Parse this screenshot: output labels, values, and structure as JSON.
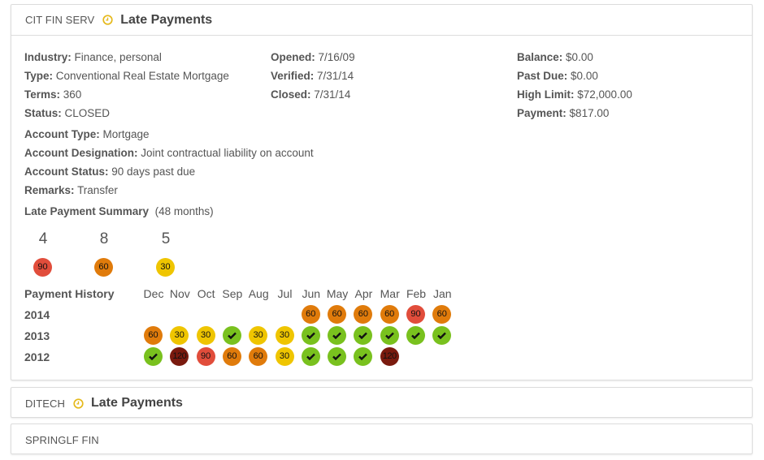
{
  "colors": {
    "c30": "#efc500",
    "c60": "#e07b0b",
    "c90": "#e14d3b",
    "c120": "#7a1a0e",
    "ok": "#79c11e",
    "clock": "#e5b91c"
  },
  "accounts": [
    {
      "creditor": "CIT FIN SERV",
      "status_title": "Late Payments",
      "has_clock": true,
      "details": {
        "col1": [
          {
            "label": "Industry:",
            "value": "Finance, personal"
          },
          {
            "label": "Type:",
            "value": "Conventional Real Estate Mortgage"
          },
          {
            "label": "Terms:",
            "value": "360"
          },
          {
            "label": "Status:",
            "value": "CLOSED"
          }
        ],
        "col2": [
          {
            "label": "Opened:",
            "value": "7/16/09"
          },
          {
            "label": "Verified:",
            "value": "7/31/14"
          },
          {
            "label": "Closed:",
            "value": "7/31/14"
          }
        ],
        "col3": [
          {
            "label": "Balance:",
            "value": "$0.00"
          },
          {
            "label": "Past Due:",
            "value": "$0.00"
          },
          {
            "label": "High Limit:",
            "value": "$72,000.00"
          },
          {
            "label": "Payment:",
            "value": "$817.00"
          }
        ],
        "extra": [
          {
            "label": "Account Type:",
            "value": "Mortgage"
          },
          {
            "label": "Account Designation:",
            "value": "Joint contractual liability on account"
          },
          {
            "label": "Account Status:",
            "value": "90 days past due"
          },
          {
            "label": "Remarks:",
            "value": "Transfer"
          }
        ]
      },
      "late_summary": {
        "title": "Late Payment Summary",
        "period": "(48 months)",
        "items": [
          {
            "count": "4",
            "badge": "90"
          },
          {
            "count": "8",
            "badge": "60"
          },
          {
            "count": "5",
            "badge": "30"
          }
        ]
      },
      "payment_history": {
        "title": "Payment History",
        "months": [
          "Dec",
          "Nov",
          "Oct",
          "Sep",
          "Aug",
          "Jul",
          "Jun",
          "May",
          "Apr",
          "Mar",
          "Feb",
          "Jan"
        ],
        "rows": [
          {
            "year": "2014",
            "values": [
              "",
              "",
              "",
              "",
              "",
              "",
              "60",
              "60",
              "60",
              "60",
              "90",
              "60"
            ]
          },
          {
            "year": "2013",
            "values": [
              "60",
              "30",
              "30",
              "ok",
              "30",
              "30",
              "ok",
              "ok",
              "ok",
              "ok",
              "ok",
              "ok"
            ]
          },
          {
            "year": "2012",
            "values": [
              "ok",
              "120",
              "90",
              "60",
              "60",
              "30",
              "ok",
              "ok",
              "ok",
              "120",
              "",
              ""
            ]
          }
        ]
      }
    },
    {
      "creditor": "DITECH",
      "status_title": "Late Payments",
      "has_clock": true
    },
    {
      "creditor": "SPRINGLF FIN",
      "status_title": "",
      "has_clock": false
    }
  ]
}
